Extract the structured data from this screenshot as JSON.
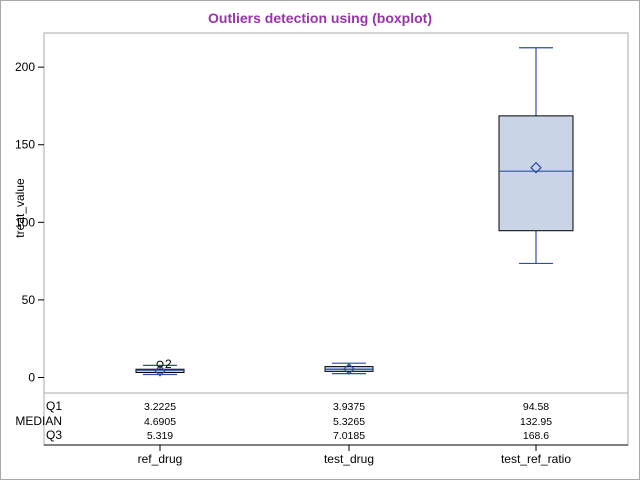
{
  "chart_data": {
    "type": "boxplot",
    "title": "Outliers detection using (boxplot)",
    "title_color": "#9933aa",
    "ylabel": "treat_value",
    "xlabel": "",
    "ylim": [
      -10,
      222
    ],
    "yticks": [
      "0",
      "50",
      "100",
      "150",
      "200"
    ],
    "ytick_values": [
      0,
      50,
      100,
      150,
      200
    ],
    "grid": false,
    "box_fill": "#c9d5e6",
    "line_color": "#2a4fa5",
    "categories": [
      "ref_drug",
      "test_drug",
      "test_ref_ratio"
    ],
    "boxes": [
      {
        "name": "ref_drug",
        "whisker_low": 1.9,
        "q1": 3.2225,
        "median": 4.6905,
        "q3": 5.319,
        "whisker_high": 7.8,
        "mean": 4.3,
        "outliers": [
          {
            "value": 8.6,
            "label": "2"
          }
        ]
      },
      {
        "name": "test_drug",
        "whisker_low": 2.5,
        "q1": 3.9375,
        "median": 5.3265,
        "q3": 7.0185,
        "whisker_high": 9.2,
        "mean": 5.5,
        "outliers": []
      },
      {
        "name": "test_ref_ratio",
        "whisker_low": 73.5,
        "q1": 94.58,
        "median": 132.95,
        "q3": 168.6,
        "whisker_high": 212.5,
        "mean": 135.2,
        "outliers": []
      }
    ],
    "stat_table": {
      "row_labels": [
        "Q1",
        "MEDIAN",
        "Q3"
      ],
      "values": [
        [
          "3.2225",
          "4.6905",
          "5.319"
        ],
        [
          "3.9375",
          "5.3265",
          "7.0185"
        ],
        [
          "94.58",
          "132.95",
          "168.6"
        ]
      ]
    }
  }
}
